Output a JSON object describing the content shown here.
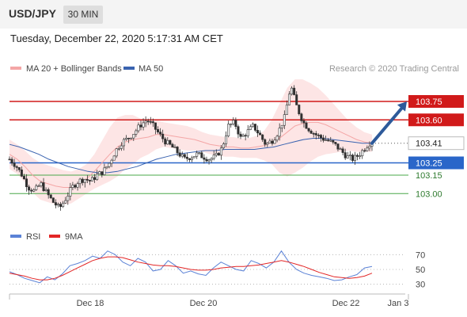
{
  "header": {
    "symbol": "USD/JPY",
    "timeframe": "30 MIN"
  },
  "datetime": "Tuesday, December 22, 2020 5:17:31 AM CET",
  "legend": {
    "ma20_bb": "MA 20 + Bollinger Bands",
    "ma50": "MA 50"
  },
  "copyright": "Research © 2020 Trading Central",
  "rsi_legend": {
    "rsi": "RSI",
    "ma": "9MA"
  },
  "colors": {
    "up_candle": "#2f2f2f",
    "down_candle": "#2f2f2f",
    "bollinger_fill": "#fde2e2",
    "ma20": "#f4a6a6",
    "ma50": "#3a63b0",
    "resistance": "#d11a1a",
    "support_blue": "#2a66c9",
    "support_green": "#4aa84a",
    "rsi_line": "#5b82d6",
    "rsi_ma": "#e32626",
    "arrow": "#2d5a9a"
  },
  "chart_data": {
    "type": "candlestick",
    "price_axis": {
      "ylim": [
        102.75,
        103.95
      ]
    },
    "levels": [
      {
        "value": 103.75,
        "label": "103.75",
        "style": "resistance"
      },
      {
        "value": 103.6,
        "label": "103.60",
        "style": "resistance"
      },
      {
        "value": 103.41,
        "label": "103.41",
        "style": "last_price"
      },
      {
        "value": 103.25,
        "label": "103.25",
        "style": "support_blue"
      },
      {
        "value": 103.15,
        "label": "103.15",
        "style": "support_green"
      },
      {
        "value": 103.0,
        "label": "103.00",
        "style": "support_green"
      }
    ],
    "x_ticks": [
      "Dec 18",
      "Dec 20",
      "Dec 22",
      "Jan 3"
    ],
    "price_series": [
      103.28,
      103.23,
      103.15,
      103.05,
      103.02,
      103.08,
      103.0,
      102.93,
      102.88,
      102.96,
      103.05,
      103.1,
      103.12,
      103.1,
      103.15,
      103.18,
      103.25,
      103.35,
      103.42,
      103.45,
      103.5,
      103.56,
      103.6,
      103.55,
      103.48,
      103.42,
      103.38,
      103.33,
      103.28,
      103.3,
      103.32,
      103.3,
      103.28,
      103.3,
      103.37,
      103.55,
      103.58,
      103.45,
      103.5,
      103.55,
      103.48,
      103.4,
      103.43,
      103.5,
      103.62,
      103.88,
      103.7,
      103.58,
      103.52,
      103.48,
      103.45,
      103.43,
      103.4,
      103.35,
      103.3,
      103.28,
      103.32,
      103.38,
      103.43
    ],
    "ma20_series": [
      103.32,
      103.28,
      103.22,
      103.15,
      103.1,
      103.08,
      103.06,
      103.05,
      103.05,
      103.08,
      103.12,
      103.18,
      103.25,
      103.32,
      103.38,
      103.42,
      103.44,
      103.45,
      103.46,
      103.48,
      103.48,
      103.47,
      103.46,
      103.45,
      103.44,
      103.42,
      103.4,
      103.39,
      103.38,
      103.38,
      103.37,
      103.37,
      103.38,
      103.39,
      103.42,
      103.45,
      103.5,
      103.55,
      103.57,
      103.58,
      103.58,
      103.56,
      103.53,
      103.5,
      103.47,
      103.44,
      103.42,
      103.41
    ],
    "ma50_series": [
      103.4,
      103.38,
      103.35,
      103.32,
      103.28,
      103.25,
      103.22,
      103.2,
      103.18,
      103.17,
      103.17,
      103.18,
      103.2,
      103.22,
      103.25,
      103.28,
      103.3,
      103.32,
      103.33,
      103.34,
      103.35,
      103.35,
      103.36,
      103.36,
      103.36,
      103.36,
      103.37,
      103.38,
      103.4,
      103.42,
      103.44,
      103.45,
      103.45,
      103.44,
      103.43,
      103.42,
      103.41,
      103.41
    ],
    "rsi": {
      "ticks": [
        70,
        50,
        30
      ],
      "ylim": [
        20,
        80
      ],
      "rsi_series": [
        47,
        43,
        38,
        35,
        32,
        40,
        36,
        44,
        55,
        58,
        62,
        68,
        65,
        75,
        70,
        60,
        55,
        65,
        60,
        48,
        50,
        62,
        55,
        45,
        48,
        44,
        42,
        52,
        60,
        55,
        50,
        48,
        62,
        58,
        52,
        60,
        75,
        60,
        50,
        45,
        42,
        40,
        38,
        35,
        36,
        40,
        43,
        52,
        54
      ],
      "ma_series": [
        45,
        43,
        41,
        38,
        36,
        36,
        38,
        42,
        47,
        52,
        57,
        62,
        65,
        67,
        67,
        66,
        63,
        60,
        58,
        56,
        55,
        55,
        54,
        52,
        50,
        49,
        49,
        50,
        52,
        53,
        54,
        54,
        55,
        56,
        58,
        60,
        62,
        60,
        57,
        54,
        50,
        46,
        43,
        40,
        39,
        38,
        39,
        41,
        45
      ]
    }
  }
}
